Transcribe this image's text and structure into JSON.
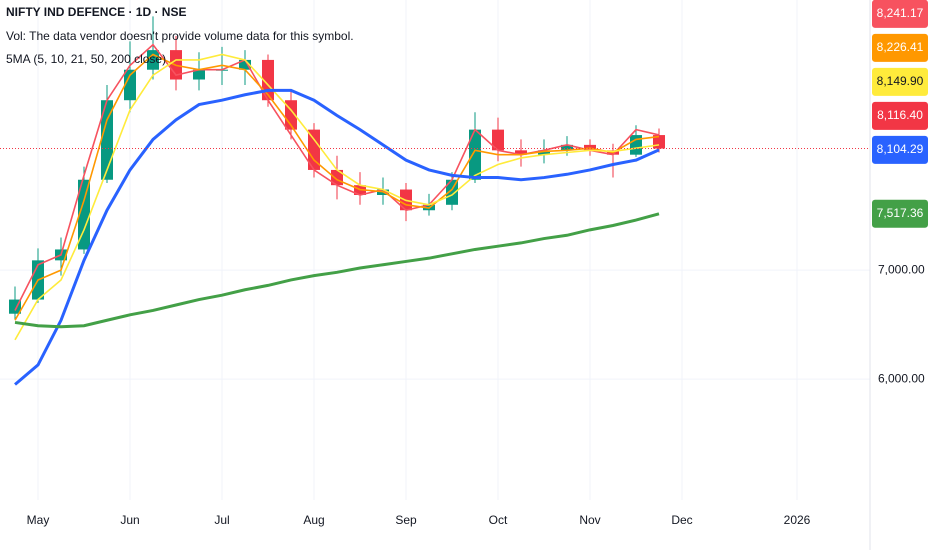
{
  "chart_data": {
    "type": "candlestick",
    "title": "NIFTY IND DEFENCE · 1D · NSE",
    "volume_note": "Vol: The data vendor doesn't provide volume data for this symbol.",
    "indicator_label": "5MA (5, 10, 21, 50, 200 close)",
    "categories": [
      null,
      "May",
      null,
      null,
      null,
      "Jun",
      null,
      null,
      null,
      "Jul",
      null,
      null,
      null,
      "Aug",
      null,
      null,
      null,
      "Sep",
      null,
      null,
      null,
      "Oct",
      null,
      null,
      null,
      "Nov",
      null,
      null,
      null,
      "Dec",
      null,
      null,
      null,
      null,
      "2026",
      null,
      null
    ],
    "ohlc": {
      "open": [
        6600,
        6730,
        7090,
        7190,
        7830,
        8560,
        8840,
        9020,
        8750,
        8840,
        8840,
        8930,
        8560,
        8290,
        7920,
        7780,
        7690,
        7740,
        7550,
        7600,
        7830,
        8290,
        8100,
        8060,
        8100,
        8150,
        8100,
        8060,
        8240,
        null,
        null,
        null,
        null,
        null,
        null,
        null,
        null
      ],
      "high": [
        6850,
        7200,
        7300,
        7950,
        8700,
        9100,
        9330,
        9150,
        9000,
        9050,
        9020,
        8980,
        8650,
        8350,
        8050,
        7900,
        7850,
        7800,
        7700,
        7900,
        8450,
        8400,
        8200,
        8200,
        8230,
        8200,
        8160,
        8330,
        8300,
        null,
        null,
        null,
        null,
        null,
        null,
        null,
        null
      ],
      "low": [
        6550,
        6700,
        6950,
        7150,
        7800,
        8450,
        8750,
        8650,
        8650,
        8700,
        8700,
        8500,
        8200,
        7850,
        7650,
        7600,
        7600,
        7450,
        7500,
        7550,
        7800,
        8000,
        7950,
        7980,
        8050,
        8050,
        7850,
        8040,
        8080,
        null,
        null,
        null,
        null,
        null,
        null,
        null,
        null
      ],
      "close": [
        6730,
        7090,
        7190,
        7830,
        8560,
        8840,
        9020,
        8750,
        8840,
        8840,
        8930,
        8560,
        8290,
        7920,
        7780,
        7690,
        7740,
        7550,
        7600,
        7830,
        8290,
        8100,
        8060,
        8100,
        8150,
        8100,
        8060,
        8240,
        8116.4,
        null,
        null,
        null,
        null,
        null,
        null,
        null,
        null
      ],
      "last_label": "8,116.40",
      "up_color": "#089981",
      "down_color": "#f23645"
    },
    "overlays": [
      {
        "color": "#f7525f",
        "value_label": "8,241.17",
        "values": [
          6630,
          7050,
          7140,
          7870,
          8560,
          8880,
          9070,
          8790,
          8840,
          8840,
          8930,
          8560,
          8240,
          7920,
          7780,
          7690,
          7740,
          7550,
          7600,
          7830,
          8290,
          8100,
          8060,
          8100,
          8150,
          8100,
          8060,
          8290,
          8241.17,
          null,
          null,
          null,
          null,
          null,
          null,
          null,
          null
        ]
      },
      {
        "color": "#ff9800",
        "value_label": "8,226.41",
        "values": [
          6540,
          6910,
          7000,
          7640,
          8380,
          8790,
          8980,
          8880,
          8840,
          8880,
          8840,
          8610,
          8330,
          8010,
          7830,
          7740,
          7720,
          7600,
          7570,
          7740,
          8100,
          8060,
          8060,
          8090,
          8100,
          8120,
          8080,
          8200,
          8226.41,
          null,
          null,
          null,
          null,
          null,
          null,
          null,
          null
        ]
      },
      {
        "color": "#ffeb3b",
        "value_label": "8,149.90",
        "values": [
          6360,
          6730,
          6910,
          7370,
          7920,
          8470,
          8790,
          8930,
          8930,
          8980,
          8930,
          8700,
          8470,
          8200,
          7920,
          7780,
          7740,
          7640,
          7600,
          7690,
          7870,
          7970,
          8030,
          8060,
          8080,
          8100,
          8090,
          8120,
          8149.9,
          null,
          null,
          null,
          null,
          null,
          null,
          null,
          null
        ]
      },
      {
        "color": "#2962ff",
        "value_label": "8,104.29",
        "values": [
          5950,
          6130,
          6540,
          7090,
          7550,
          7920,
          8200,
          8380,
          8520,
          8560,
          8610,
          8650,
          8650,
          8560,
          8420,
          8290,
          8150,
          8010,
          7920,
          7870,
          7850,
          7850,
          7830,
          7850,
          7880,
          7920,
          7970,
          8010,
          8104.29,
          null,
          null,
          null,
          null,
          null,
          null,
          null,
          null
        ]
      },
      {
        "color": "#43a047",
        "value_label": "7,517.36",
        "values": [
          6520,
          6490,
          6480,
          6490,
          6540,
          6590,
          6630,
          6680,
          6730,
          6770,
          6820,
          6860,
          6910,
          6950,
          6980,
          7020,
          7050,
          7080,
          7110,
          7150,
          7190,
          7220,
          7250,
          7290,
          7320,
          7370,
          7410,
          7460,
          7517.36,
          null,
          null,
          null,
          null,
          null,
          null,
          null,
          null
        ]
      }
    ],
    "ylim": [
      4890,
      9480
    ],
    "yticks": [
      {
        "value": 6000,
        "label": "6,000.00"
      },
      {
        "value": 7000,
        "label": "7,000.00"
      }
    ],
    "grid": true
  }
}
